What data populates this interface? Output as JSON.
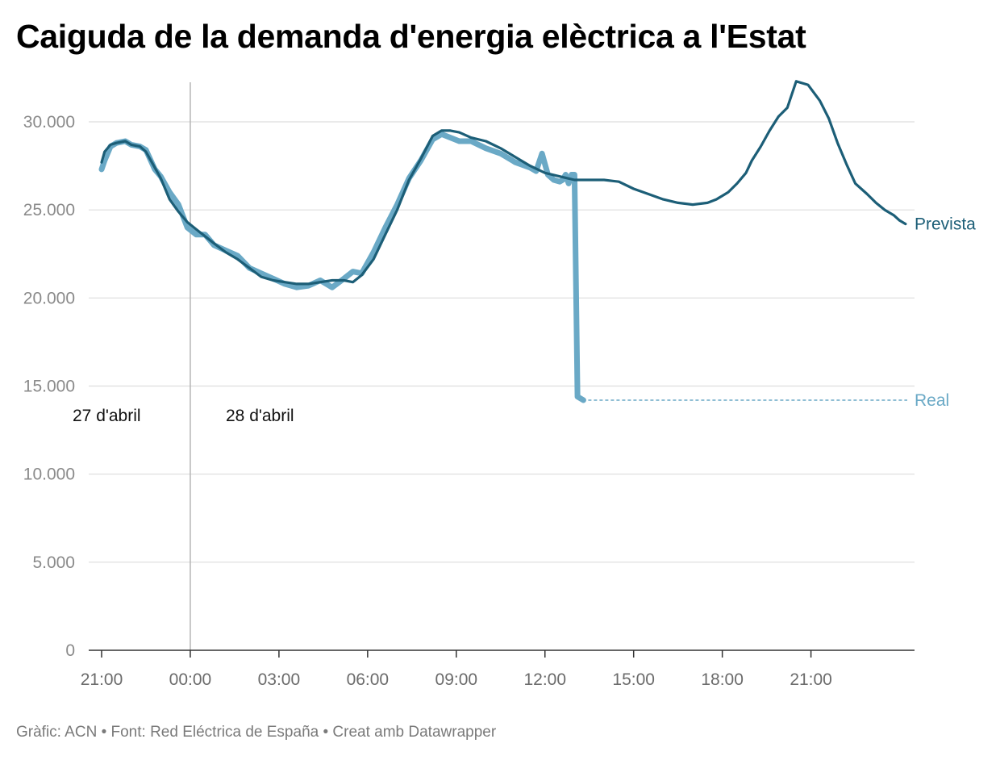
{
  "title": "Caiguda de la demanda d'energia elèctrica a l'Estat",
  "footer": "Gràfic: ACN • Font: Red Eléctrica de España • Creat amb Datawrapper",
  "chart_data": {
    "type": "line",
    "title": "Caiguda de la demanda d'energia elèctrica a l'Estat",
    "xlabel": "",
    "ylabel": "",
    "x_unit": "hours since 27 d'abril 21:00",
    "xlim": [
      0,
      27.5
    ],
    "ylim": [
      0,
      32500
    ],
    "yticks": [
      0,
      5000,
      10000,
      15000,
      20000,
      25000,
      30000
    ],
    "ytick_labels": [
      "0",
      "5.000",
      "10.000",
      "15.000",
      "20.000",
      "25.000",
      "30.000"
    ],
    "xticks": [
      0,
      3,
      6,
      9,
      12,
      15,
      18,
      21,
      24
    ],
    "xtick_labels": [
      "21:00",
      "00:00",
      "03:00",
      "06:00",
      "09:00",
      "12:00",
      "15:00",
      "18:00",
      "21:00"
    ],
    "grid": true,
    "annotations": [
      {
        "text": "27 d'abril",
        "x": 0.4,
        "y": 13200
      },
      {
        "text": "28 d'abril",
        "x": 5.5,
        "y": 13200
      }
    ],
    "day_separator_x": 3,
    "colors": {
      "prevista": "#1c5e77",
      "real": "#6aa9c6",
      "grid": "#dddddd",
      "axis": "#333333"
    },
    "series": [
      {
        "name": "Prevista",
        "x": [
          0,
          0.1,
          0.3,
          0.5,
          0.8,
          1.0,
          1.3,
          1.5,
          1.8,
          2.0,
          2.3,
          2.6,
          2.9,
          3.2,
          3.5,
          3.8,
          4.2,
          4.6,
          5.0,
          5.4,
          5.8,
          6.2,
          6.6,
          7.0,
          7.4,
          7.8,
          8.2,
          8.5,
          8.8,
          9.2,
          9.6,
          10.0,
          10.4,
          10.8,
          11.2,
          11.5,
          11.8,
          12.1,
          12.5,
          13.0,
          13.5,
          14.0,
          14.5,
          15.0,
          15.5,
          16.0,
          16.5,
          17.0,
          17.5,
          18.0,
          18.5,
          19.0,
          19.5,
          20.0,
          20.5,
          20.8,
          21.0,
          21.2,
          21.5,
          21.8,
          22.0,
          22.3,
          22.6,
          22.9,
          23.2,
          23.5,
          23.9,
          24.3,
          24.6,
          24.9,
          25.2,
          25.5,
          25.9,
          26.2,
          26.5,
          26.8,
          27.0,
          27.2
        ],
        "values": [
          27700,
          28300,
          28700,
          28800,
          28900,
          28700,
          28600,
          28300,
          27400,
          26800,
          25600,
          24900,
          24300,
          23900,
          23500,
          23100,
          22600,
          22200,
          21700,
          21200,
          21000,
          20900,
          20800,
          20800,
          20900,
          21000,
          21000,
          20900,
          21300,
          22200,
          23600,
          25000,
          26700,
          27900,
          29200,
          29500,
          29500,
          29400,
          29100,
          28900,
          28500,
          28000,
          27500,
          27100,
          26900,
          26700,
          26700,
          26700,
          26600,
          26200,
          25900,
          25600,
          25400,
          25300,
          25400,
          25600,
          25800,
          26000,
          26500,
          27100,
          27800,
          28600,
          29500,
          30300,
          30800,
          32300,
          32100,
          31200,
          30200,
          28800,
          27600,
          26500,
          25900,
          25400,
          25000,
          24700,
          24400,
          24200
        ]
      },
      {
        "name": "Real",
        "x": [
          0,
          0.1,
          0.3,
          0.5,
          0.8,
          1.0,
          1.3,
          1.5,
          1.8,
          2.0,
          2.3,
          2.6,
          2.9,
          3.2,
          3.5,
          3.8,
          4.2,
          4.6,
          5.0,
          5.4,
          5.8,
          6.2,
          6.6,
          7.0,
          7.4,
          7.8,
          8.2,
          8.5,
          8.8,
          9.2,
          9.6,
          10.0,
          10.4,
          10.8,
          11.2,
          11.5,
          11.8,
          12.1,
          12.5,
          13.0,
          13.5,
          14.0,
          14.5,
          14.7,
          14.9,
          15.1,
          15.3,
          15.5,
          15.6,
          15.7,
          15.8,
          15.9,
          16.0,
          16.1,
          16.3
        ],
        "values": [
          27300,
          27800,
          28600,
          28800,
          28900,
          28700,
          28600,
          28400,
          27300,
          26900,
          26000,
          25300,
          24000,
          23600,
          23600,
          23000,
          22700,
          22400,
          21700,
          21400,
          21100,
          20800,
          20600,
          20700,
          21000,
          20600,
          21100,
          21500,
          21400,
          22600,
          24000,
          25300,
          26800,
          27800,
          29000,
          29300,
          29100,
          28900,
          28900,
          28500,
          28200,
          27700,
          27400,
          27200,
          28200,
          27000,
          26700,
          26600,
          26700,
          27000,
          26500,
          27000,
          27000,
          14400,
          14200
        ]
      }
    ],
    "series_labels": [
      "Prevista",
      "Real"
    ],
    "real_last_value": 14200
  }
}
